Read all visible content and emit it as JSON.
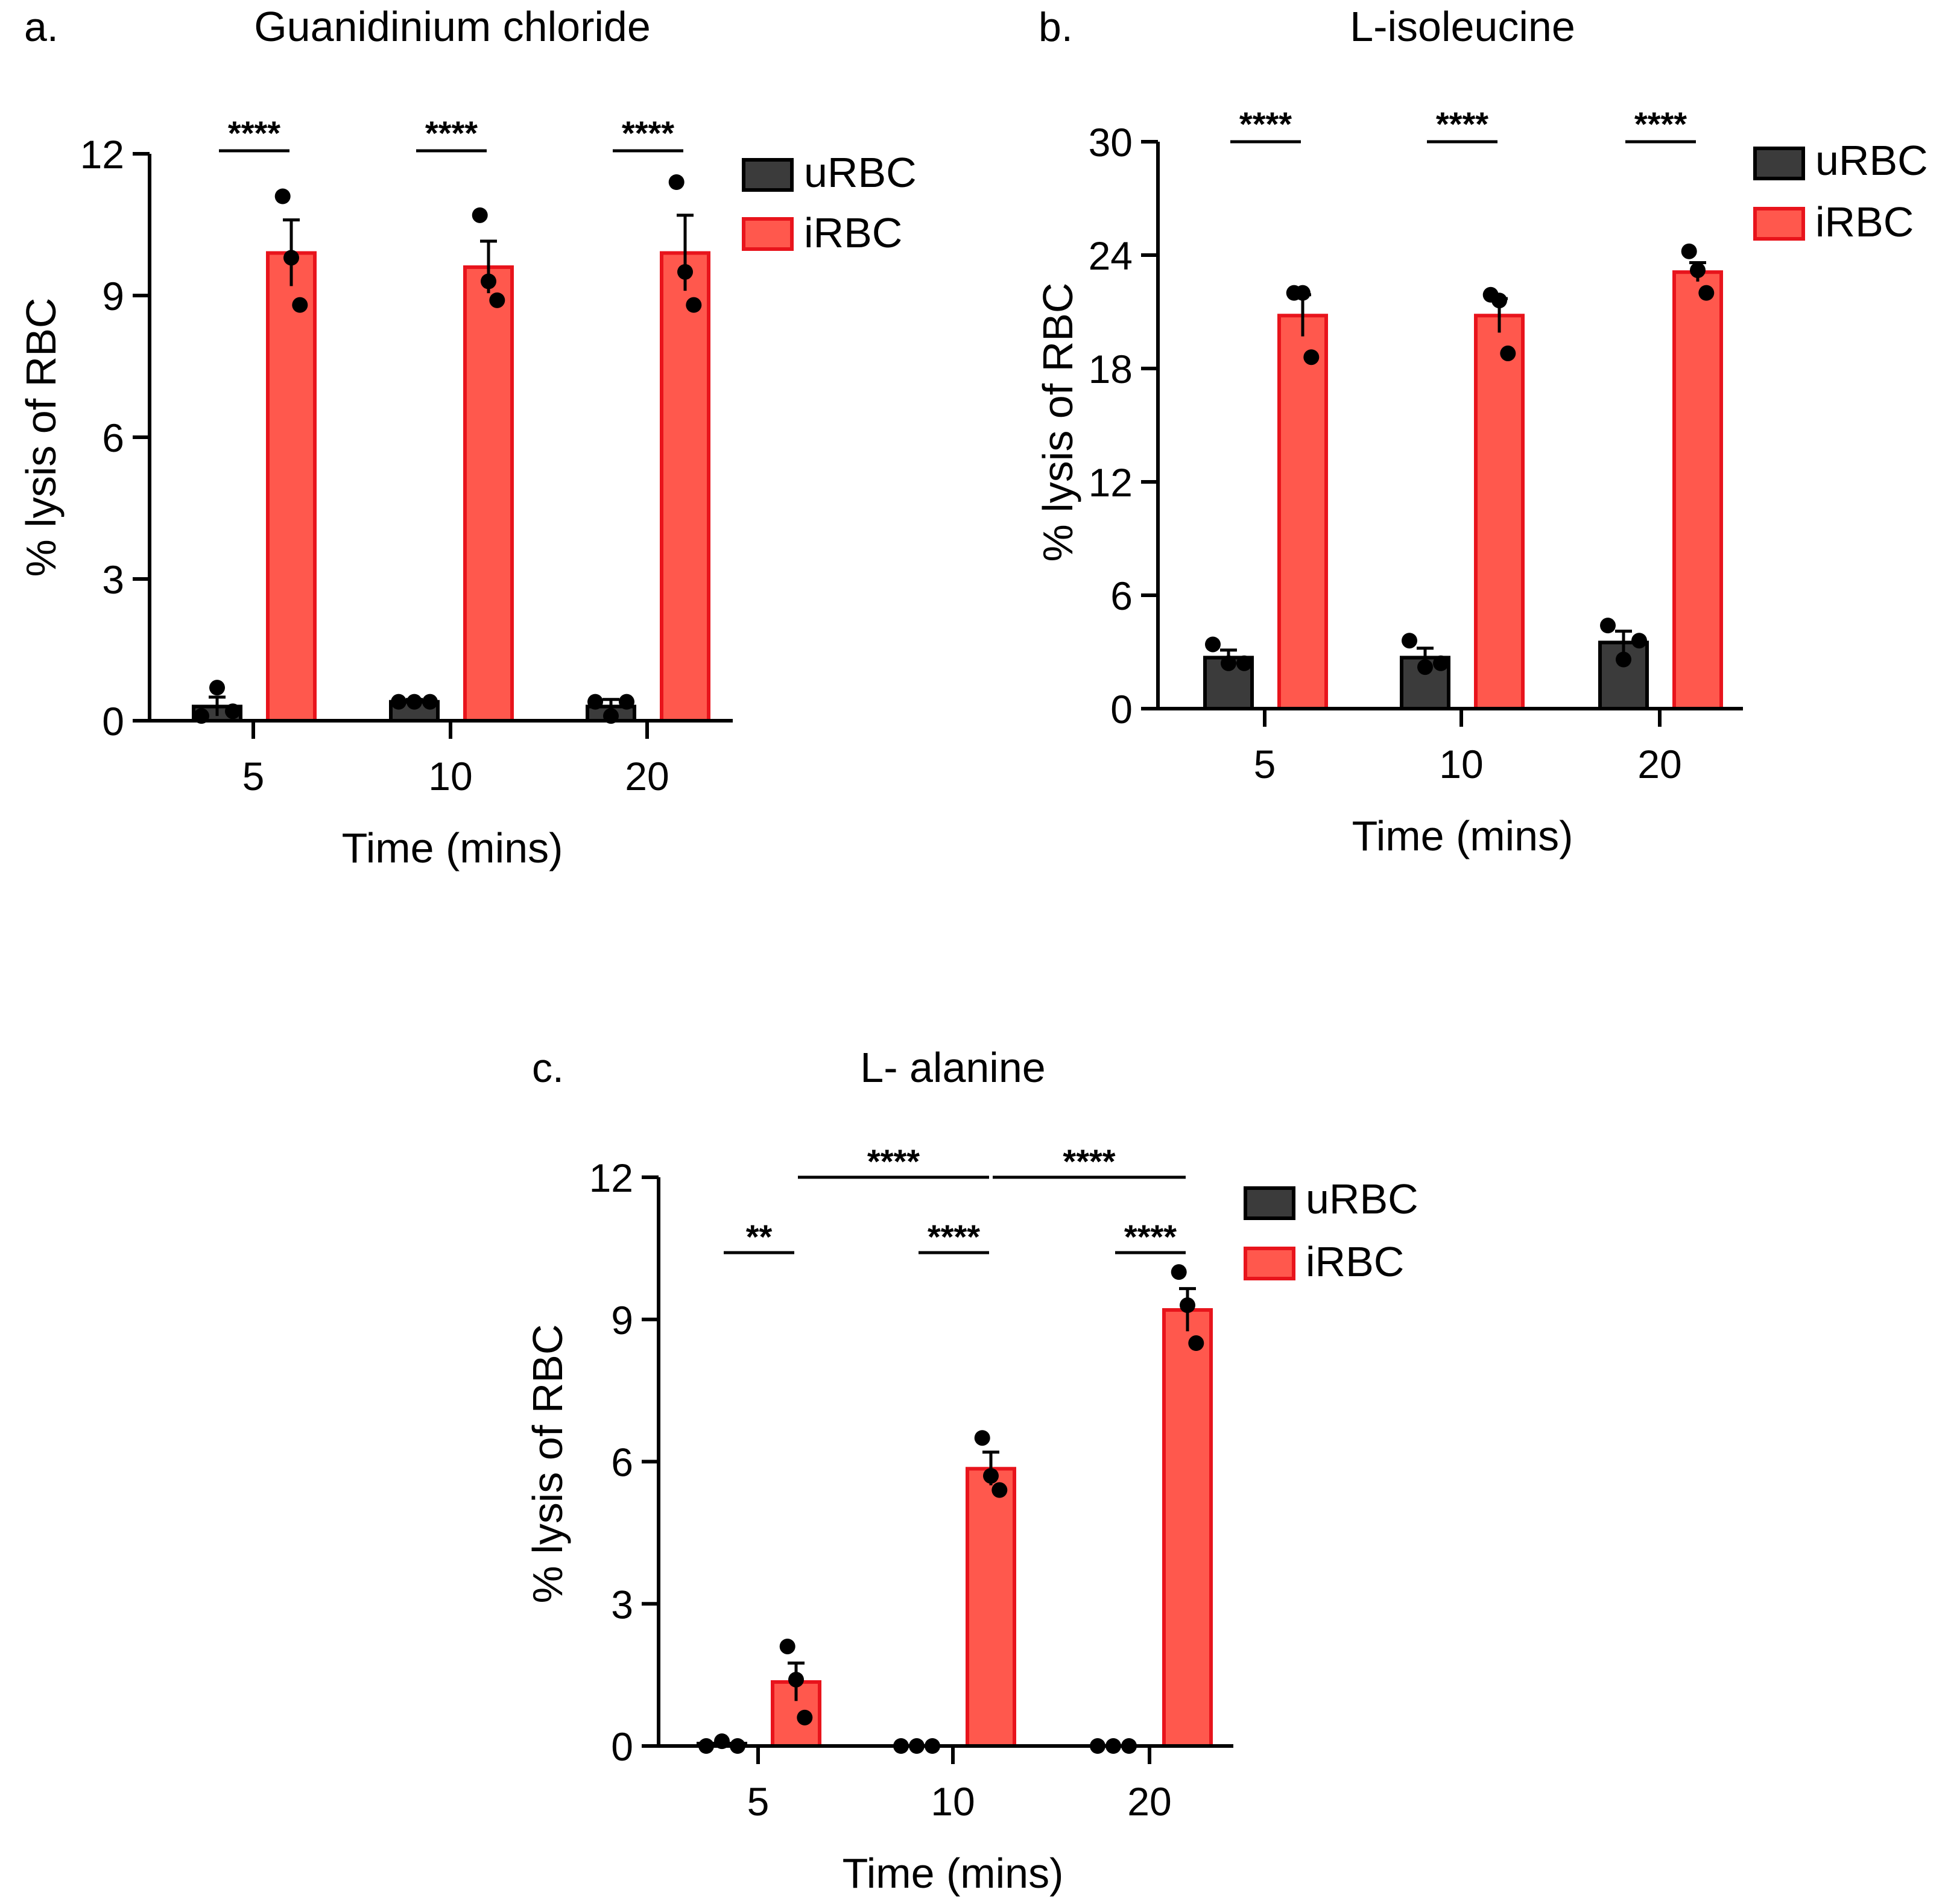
{
  "colors": {
    "uRBC_fill": "#3b3b3b",
    "iRBC_fill": "#ff584d",
    "iRBC_edge": "#e8141c",
    "axis": "#000000",
    "point": "#000000"
  },
  "chart_data": [
    {
      "type": "bar",
      "panel_label": "a.",
      "title": "Guanidinium chloride",
      "xlabel": "Time (mins)",
      "ylabel": "% lysis of RBC",
      "categories": [
        "5",
        "10",
        "20"
      ],
      "ylim": [
        0,
        12
      ],
      "yticks": [
        0,
        3,
        6,
        9,
        12
      ],
      "legend": [
        "uRBC",
        "iRBC"
      ],
      "series": [
        {
          "name": "uRBC",
          "values": [
            0.3,
            0.4,
            0.3
          ],
          "sem": [
            0.2,
            0.05,
            0.15
          ],
          "points": [
            [
              0.1,
              0.7,
              0.2
            ],
            [
              0.4,
              0.4,
              0.4
            ],
            [
              0.4,
              0.1,
              0.4
            ]
          ]
        },
        {
          "name": "iRBC",
          "values": [
            9.9,
            9.6,
            9.9
          ],
          "sem": [
            0.7,
            0.55,
            0.8
          ],
          "points": [
            [
              11.1,
              9.8,
              8.8
            ],
            [
              10.7,
              9.3,
              8.9
            ],
            [
              11.4,
              9.5,
              8.8
            ]
          ]
        }
      ],
      "significance": [
        {
          "label": "****",
          "from": [
            0,
            0
          ],
          "to": [
            0,
            1
          ]
        },
        {
          "label": "****",
          "from": [
            1,
            0
          ],
          "to": [
            1,
            1
          ]
        },
        {
          "label": "****",
          "from": [
            2,
            0
          ],
          "to": [
            2,
            1
          ]
        }
      ]
    },
    {
      "type": "bar",
      "panel_label": "b.",
      "title": "L-isoleucine",
      "xlabel": "Time (mins)",
      "ylabel": "% lysis of RBC",
      "categories": [
        "5",
        "10",
        "20"
      ],
      "ylim": [
        0,
        30
      ],
      "yticks": [
        0,
        6,
        12,
        18,
        24,
        30
      ],
      "legend": [
        "uRBC",
        "iRBC"
      ],
      "series": [
        {
          "name": "uRBC",
          "values": [
            2.7,
            2.7,
            3.5
          ],
          "sem": [
            0.4,
            0.5,
            0.6
          ],
          "points": [
            [
              3.4,
              2.4,
              2.4
            ],
            [
              3.6,
              2.2,
              2.4
            ],
            [
              4.4,
              2.6,
              3.6
            ]
          ]
        },
        {
          "name": "iRBC",
          "values": [
            20.8,
            20.8,
            23.1
          ],
          "sem": [
            1.1,
            0.9,
            0.5
          ],
          "points": [
            [
              22.0,
              22.0,
              18.6
            ],
            [
              21.9,
              21.6,
              18.8
            ],
            [
              24.2,
              23.2,
              22.0
            ]
          ]
        }
      ],
      "significance": [
        {
          "label": "****",
          "from": [
            0,
            0
          ],
          "to": [
            0,
            1
          ]
        },
        {
          "label": "****",
          "from": [
            1,
            0
          ],
          "to": [
            1,
            1
          ]
        },
        {
          "label": "****",
          "from": [
            2,
            0
          ],
          "to": [
            2,
            1
          ]
        }
      ]
    },
    {
      "type": "bar",
      "panel_label": "c.",
      "title": "L- alanine",
      "xlabel": "Time (mins)",
      "ylabel": "% lysis of RBC",
      "categories": [
        "5",
        "10",
        "20"
      ],
      "ylim": [
        0,
        12
      ],
      "yticks": [
        0,
        3,
        6,
        9,
        12
      ],
      "legend": [
        "uRBC",
        "iRBC"
      ],
      "series": [
        {
          "name": "uRBC",
          "values": [
            0.05,
            0.0,
            0.0
          ],
          "sem": [
            0.0,
            0.0,
            0.0
          ],
          "points": [
            [
              0.0,
              0.1,
              0.0
            ],
            [
              0.0,
              0.0,
              0.0
            ],
            [
              0.0,
              0.0,
              0.0
            ]
          ]
        },
        {
          "name": "iRBC",
          "values": [
            1.35,
            5.85,
            9.2
          ],
          "sem": [
            0.4,
            0.35,
            0.45
          ],
          "points": [
            [
              2.1,
              1.4,
              0.6
            ],
            [
              6.5,
              5.7,
              5.4
            ],
            [
              10.0,
              9.3,
              8.5
            ]
          ]
        }
      ],
      "significance": [
        {
          "label": "**",
          "from": [
            0,
            0
          ],
          "to": [
            0,
            1
          ]
        },
        {
          "label": "****",
          "from": [
            1,
            0
          ],
          "to": [
            1,
            1
          ]
        },
        {
          "label": "****",
          "from": [
            2,
            0
          ],
          "to": [
            2,
            1
          ]
        },
        {
          "label": "****",
          "from": [
            0,
            1
          ],
          "to": [
            1,
            1
          ]
        },
        {
          "label": "****",
          "from": [
            1,
            1
          ],
          "to": [
            2,
            1
          ]
        }
      ]
    }
  ]
}
